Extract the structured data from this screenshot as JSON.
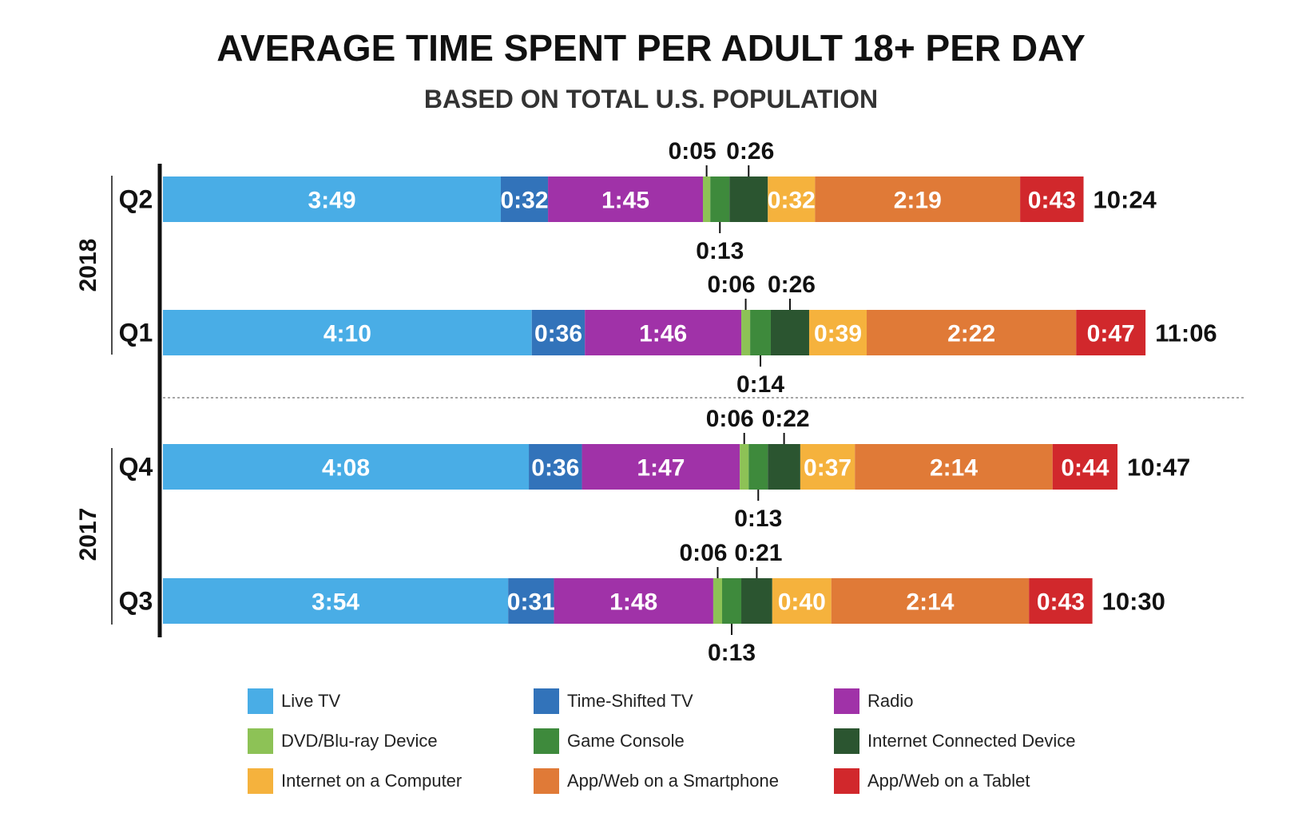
{
  "chart_data": {
    "type": "bar",
    "orientation": "horizontal",
    "stacked": true,
    "title": "AVERAGE TIME SPENT PER ADULT 18+ PER DAY",
    "subtitle": "BASED ON TOTAL U.S. POPULATION",
    "units": "hours:minutes",
    "groups": [
      {
        "label": "2018",
        "rows": [
          "Q2",
          "Q1"
        ]
      },
      {
        "label": "2017",
        "rows": [
          "Q4",
          "Q3"
        ]
      }
    ],
    "categories": [
      "Q2",
      "Q1",
      "Q4",
      "Q3"
    ],
    "totals": [
      "10:24",
      "11:06",
      "10:47",
      "10:30"
    ],
    "series": [
      {
        "name": "Live TV",
        "color": "#49ADE6",
        "labels": [
          "3:49",
          "4:10",
          "4:08",
          "3:54"
        ],
        "values": [
          229,
          250,
          248,
          234
        ]
      },
      {
        "name": "Time-Shifted TV",
        "color": "#3273BA",
        "labels": [
          "0:32",
          "0:36",
          "0:36",
          "0:31"
        ],
        "values": [
          32,
          36,
          36,
          31
        ]
      },
      {
        "name": "Radio",
        "color": "#A032A8",
        "labels": [
          "1:45",
          "1:46",
          "1:47",
          "1:48"
        ],
        "values": [
          105,
          106,
          107,
          108
        ]
      },
      {
        "name": "DVD/Blu-ray Device",
        "color": "#8DC256",
        "labels": [
          "0:05",
          "0:06",
          "0:06",
          "0:06"
        ],
        "values": [
          5,
          6,
          6,
          6
        ]
      },
      {
        "name": "Game Console",
        "color": "#3E8A3C",
        "labels": [
          "0:13",
          "0:14",
          "0:13",
          "0:13"
        ],
        "values": [
          13,
          14,
          13,
          13
        ]
      },
      {
        "name": "Internet Connected Device",
        "color": "#2B5530",
        "labels": [
          "0:26",
          "0:26",
          "0:22",
          "0:21"
        ],
        "values": [
          26,
          26,
          22,
          21
        ]
      },
      {
        "name": "Internet on a Computer",
        "color": "#F5B23D",
        "labels": [
          "0:32",
          "0:39",
          "0:37",
          "0:40"
        ],
        "values": [
          32,
          39,
          37,
          40
        ]
      },
      {
        "name": "App/Web on a Smartphone",
        "color": "#E07A37",
        "labels": [
          "2:19",
          "2:22",
          "2:14",
          "2:14"
        ],
        "values": [
          139,
          142,
          134,
          134
        ]
      },
      {
        "name": "App/Web on a Tablet",
        "color": "#D1282C",
        "labels": [
          "0:43",
          "0:47",
          "0:44",
          "0:43"
        ],
        "values": [
          43,
          47,
          44,
          43
        ]
      }
    ]
  }
}
